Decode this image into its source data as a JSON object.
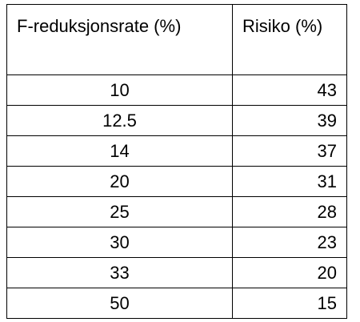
{
  "table": {
    "header": [
      "F-reduksjonsrate (%)",
      "Risiko (%)"
    ],
    "rows": [
      [
        10,
        43
      ],
      [
        12.5,
        39
      ],
      [
        14,
        37
      ],
      [
        20,
        31
      ],
      [
        25,
        28
      ],
      [
        30,
        23
      ],
      [
        33,
        20
      ],
      [
        50,
        15
      ]
    ]
  }
}
